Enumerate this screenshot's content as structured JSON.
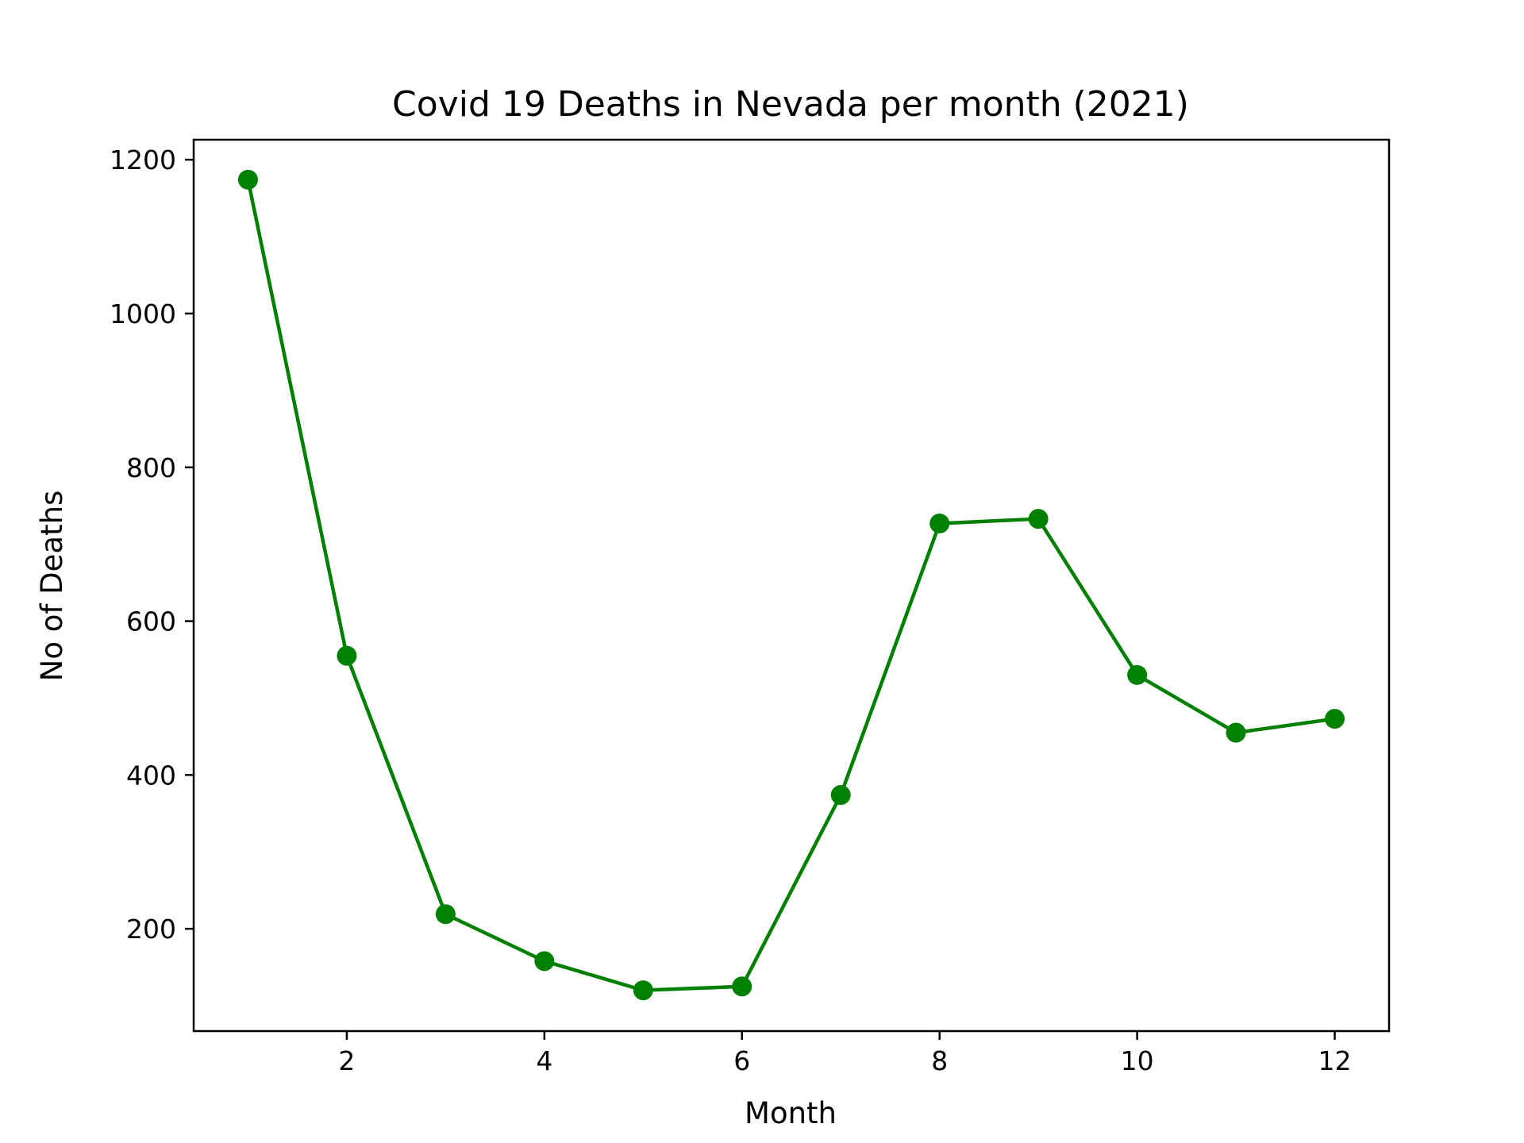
{
  "chart_data": {
    "type": "line",
    "title": "Covid 19 Deaths in Nevada per month (2021)",
    "xlabel": "Month",
    "ylabel": "No of Deaths",
    "xlim": [
      0.45,
      12.55
    ],
    "ylim": [
      67,
      1226
    ],
    "xticks": [
      2,
      4,
      6,
      8,
      10,
      12
    ],
    "yticks": [
      200,
      400,
      600,
      800,
      1000,
      1200
    ],
    "grid": false,
    "legend": "none",
    "series": [
      {
        "color": "#008000",
        "marker": "circle",
        "x": [
          1,
          2,
          3,
          4,
          5,
          6,
          7,
          8,
          9,
          10,
          11,
          12
        ],
        "values": [
          1174,
          555,
          219,
          158,
          120,
          125,
          374,
          727,
          733,
          530,
          455,
          473
        ]
      }
    ]
  }
}
